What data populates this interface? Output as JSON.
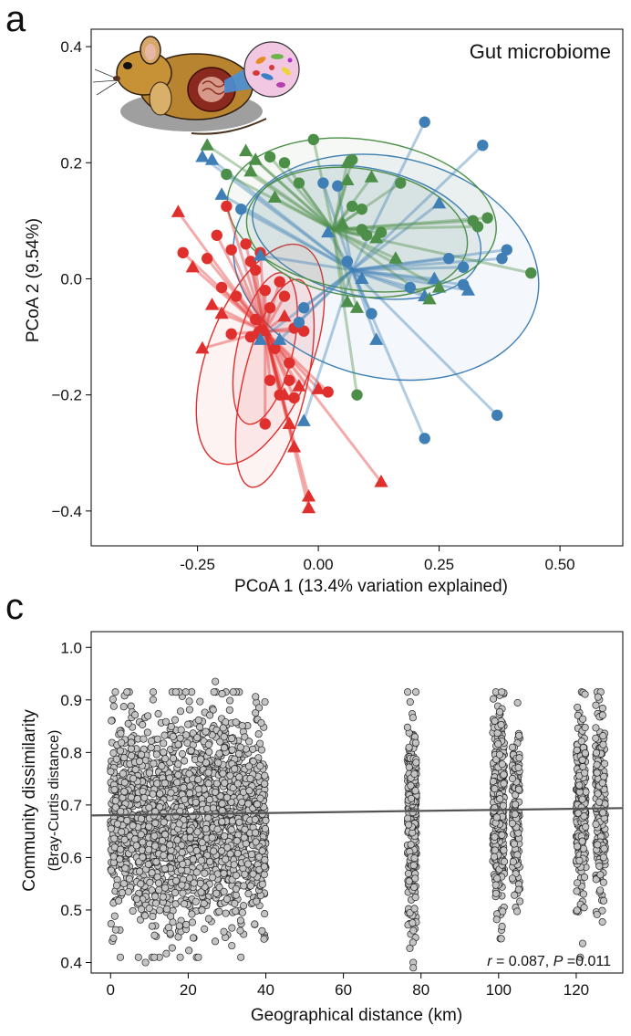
{
  "colors": {
    "red": "#e0302e",
    "blue": "#3f7fb6",
    "green": "#4d8f48",
    "scatter_fill": "#c4c4c4",
    "trend_line": "#555555"
  },
  "icon": "mouse-gut-microbiome-illustration",
  "chart_data": [
    {
      "panel_label": "a",
      "type": "scatter",
      "annotation": "Gut microbiome",
      "xlabel": "PCoA 1 (13.4% variation explained)",
      "ylabel": "PCoA 2 (9.54%)",
      "xlim": [
        -0.47,
        0.63
      ],
      "ylim": [
        -0.46,
        0.43
      ],
      "x_ticks": [
        -0.25,
        0.0,
        0.25,
        0.5
      ],
      "x_tick_labels": [
        "-0.25",
        "0.00",
        "0.25",
        "0.50"
      ],
      "y_ticks": [
        0.4,
        0.2,
        0.0,
        -0.2,
        -0.4
      ],
      "y_tick_labels": [
        "0.4",
        "0.2",
        "0.0",
        "−0.2",
        "−0.4"
      ],
      "grid": false,
      "centroids": [
        {
          "color": "red",
          "x": -0.11,
          "y": -0.09
        },
        {
          "color": "blue",
          "x": 0.07,
          "y": 0.015
        },
        {
          "color": "green",
          "x": 0.03,
          "y": 0.085
        }
      ],
      "ellipses": [
        {
          "color": "red",
          "cx": -0.12,
          "cy": -0.13,
          "rx": 0.24,
          "ry": 0.09,
          "angle": -69
        },
        {
          "color": "red",
          "cx": -0.09,
          "cy": -0.18,
          "rx": 0.22,
          "ry": 0.055,
          "angle": -77
        },
        {
          "color": "red",
          "cx": -0.11,
          "cy": -0.12,
          "rx": 0.16,
          "ry": 0.048,
          "angle": -77
        },
        {
          "color": "blue",
          "cx": 0.14,
          "cy": 0.02,
          "rx": 0.32,
          "ry": 0.19,
          "angle": 13
        },
        {
          "color": "blue",
          "cx": 0.1,
          "cy": 0.08,
          "rx": 0.24,
          "ry": 0.11,
          "angle": 12
        },
        {
          "color": "green",
          "cx": 0.09,
          "cy": 0.11,
          "rx": 0.28,
          "ry": 0.13,
          "angle": 8
        },
        {
          "color": "green",
          "cx": 0.08,
          "cy": 0.08,
          "rx": 0.23,
          "ry": 0.11,
          "angle": 8
        }
      ],
      "series": [
        {
          "color": "red",
          "marker": "circle",
          "points": [
            [
              -0.28,
              0.045
            ],
            [
              -0.18,
              0.05
            ],
            [
              -0.21,
              0.075
            ],
            [
              -0.19,
              0.125
            ],
            [
              -0.23,
              0.035
            ],
            [
              -0.14,
              0.03
            ],
            [
              -0.15,
              0.06
            ],
            [
              -0.12,
              0.045
            ],
            [
              -0.13,
              0.015
            ],
            [
              -0.2,
              -0.015
            ],
            [
              -0.17,
              -0.03
            ],
            [
              -0.11,
              -0.02
            ],
            [
              -0.07,
              -0.03
            ],
            [
              -0.08,
              -0.005
            ],
            [
              -0.1,
              -0.05
            ],
            [
              -0.13,
              -0.07
            ],
            [
              -0.12,
              -0.09
            ],
            [
              -0.05,
              -0.085
            ],
            [
              -0.09,
              -0.12
            ],
            [
              -0.18,
              -0.095
            ],
            [
              -0.14,
              -0.1
            ],
            [
              -0.1,
              -0.175
            ],
            [
              -0.06,
              -0.145
            ],
            [
              -0.11,
              -0.25
            ],
            [
              0.02,
              -0.195
            ],
            [
              -0.05,
              -0.205
            ],
            [
              -0.03,
              -0.09
            ],
            [
              -0.08,
              -0.2
            ],
            [
              -0.06,
              -0.175
            ]
          ]
        },
        {
          "color": "red",
          "marker": "triangle",
          "points": [
            [
              -0.29,
              0.115
            ],
            [
              -0.26,
              0.02
            ],
            [
              -0.22,
              -0.045
            ],
            [
              -0.2,
              -0.06
            ],
            [
              -0.24,
              -0.12
            ],
            [
              -0.11,
              -0.09
            ],
            [
              -0.07,
              -0.065
            ],
            [
              -0.07,
              -0.2
            ],
            [
              -0.06,
              -0.25
            ],
            [
              -0.05,
              -0.29
            ],
            [
              -0.04,
              -0.185
            ],
            [
              -0.02,
              -0.375
            ],
            [
              0.0,
              -0.19
            ],
            [
              0.13,
              -0.35
            ],
            [
              -0.02,
              -0.395
            ],
            [
              -0.13,
              -0.095
            ]
          ]
        },
        {
          "color": "blue",
          "marker": "circle",
          "points": [
            [
              0.22,
              0.27
            ],
            [
              0.34,
              0.23
            ],
            [
              0.01,
              0.165
            ],
            [
              0.04,
              0.16
            ],
            [
              0.39,
              0.05
            ],
            [
              0.38,
              0.035
            ],
            [
              0.27,
              0.035
            ],
            [
              0.3,
              0.02
            ],
            [
              0.3,
              -0.01
            ],
            [
              0.19,
              -0.015
            ],
            [
              0.11,
              -0.06
            ],
            [
              -0.03,
              -0.05
            ],
            [
              -0.04,
              -0.075
            ],
            [
              0.06,
              0.03
            ],
            [
              0.37,
              -0.235
            ],
            [
              0.22,
              -0.275
            ],
            [
              -0.16,
              0.12
            ]
          ]
        },
        {
          "color": "blue",
          "marker": "triangle",
          "points": [
            [
              -0.24,
              0.21
            ],
            [
              -0.22,
              0.205
            ],
            [
              -0.2,
              0.145
            ],
            [
              -0.12,
              0.04
            ],
            [
              0.02,
              0.08
            ],
            [
              0.25,
              0.13
            ],
            [
              0.24,
              0.0
            ],
            [
              0.31,
              -0.02
            ],
            [
              0.09,
              -0.0
            ],
            [
              -0.12,
              -0.105
            ],
            [
              -0.08,
              -0.105
            ],
            [
              0.12,
              -0.105
            ],
            [
              -0.03,
              -0.245
            ],
            [
              0.22,
              -0.03
            ]
          ]
        },
        {
          "color": "green",
          "marker": "circle",
          "points": [
            [
              -0.1,
              0.21
            ],
            [
              -0.07,
              0.2
            ],
            [
              -0.01,
              0.24
            ],
            [
              -0.19,
              0.18
            ],
            [
              -0.04,
              0.165
            ],
            [
              0.07,
              0.205
            ],
            [
              0.17,
              0.165
            ],
            [
              0.07,
              0.125
            ],
            [
              0.09,
              0.12
            ],
            [
              0.09,
              0.085
            ],
            [
              0.13,
              0.08
            ],
            [
              0.32,
              0.1
            ],
            [
              0.33,
              0.09
            ],
            [
              0.35,
              0.105
            ],
            [
              0.44,
              0.01
            ],
            [
              0.1,
              0.075
            ],
            [
              0.08,
              -0.2
            ]
          ]
        },
        {
          "color": "green",
          "marker": "triangle",
          "points": [
            [
              -0.23,
              0.23
            ],
            [
              -0.15,
              0.22
            ],
            [
              -0.13,
              0.205
            ],
            [
              -0.14,
              0.185
            ],
            [
              -0.09,
              0.14
            ],
            [
              0.06,
              0.2
            ],
            [
              0.06,
              0.17
            ],
            [
              0.11,
              0.175
            ],
            [
              0.05,
              0.095
            ],
            [
              0.12,
              0.07
            ],
            [
              0.16,
              0.035
            ],
            [
              0.25,
              -0.015
            ],
            [
              0.23,
              -0.035
            ],
            [
              0.06,
              -0.04
            ],
            [
              0.08,
              -0.05
            ]
          ]
        }
      ]
    },
    {
      "panel_label": "c",
      "type": "scatter",
      "xlabel": "Geographical distance (km)",
      "ylabel_line1": "Community dissimilarity",
      "ylabel_line2": "(Bray-Curtis distance)",
      "xlim": [
        -5,
        132
      ],
      "ylim": [
        0.38,
        1.03
      ],
      "x_ticks": [
        0,
        20,
        40,
        60,
        80,
        100,
        120
      ],
      "x_tick_labels": [
        "0",
        "20",
        "40",
        "60",
        "80",
        "100",
        "120"
      ],
      "y_ticks": [
        0.4,
        0.5,
        0.6,
        0.7,
        0.8,
        0.9,
        1.0
      ],
      "y_tick_labels": [
        "0.4",
        "0.5",
        "0.6",
        "0.7",
        "0.8",
        "0.9",
        "1.0"
      ],
      "grid": false,
      "trend_line": {
        "x": [
          -5,
          132
        ],
        "y": [
          0.68,
          0.694
        ]
      },
      "stat_r_symbol": "r",
      "stat_r_value": " = 0.087, ",
      "stat_p_symbol": "P",
      "stat_p_value": " =0.011",
      "point_groups": [
        {
          "x_min": 0,
          "x_max": 40,
          "count": 1900,
          "y_mean": 0.675,
          "y_sd": 0.1
        },
        {
          "x_min": 76.5,
          "x_max": 78.8,
          "count": 260,
          "y_mean": 0.68,
          "y_sd": 0.09
        },
        {
          "x_min": 98.5,
          "x_max": 101.5,
          "count": 330,
          "y_mean": 0.69,
          "y_sd": 0.09
        },
        {
          "x_min": 103.5,
          "x_max": 105.5,
          "count": 140,
          "y_mean": 0.69,
          "y_sd": 0.08
        },
        {
          "x_min": 120,
          "x_max": 122.5,
          "count": 240,
          "y_mean": 0.7,
          "y_sd": 0.09
        },
        {
          "x_min": 125,
          "x_max": 127.5,
          "count": 220,
          "y_mean": 0.7,
          "y_sd": 0.09
        }
      ],
      "extreme_points": [
        [
          27,
          0.935
        ],
        [
          100.8,
          0.915
        ],
        [
          78,
          0.4
        ],
        [
          9,
          0.4
        ],
        [
          78,
          0.39
        ]
      ]
    }
  ]
}
